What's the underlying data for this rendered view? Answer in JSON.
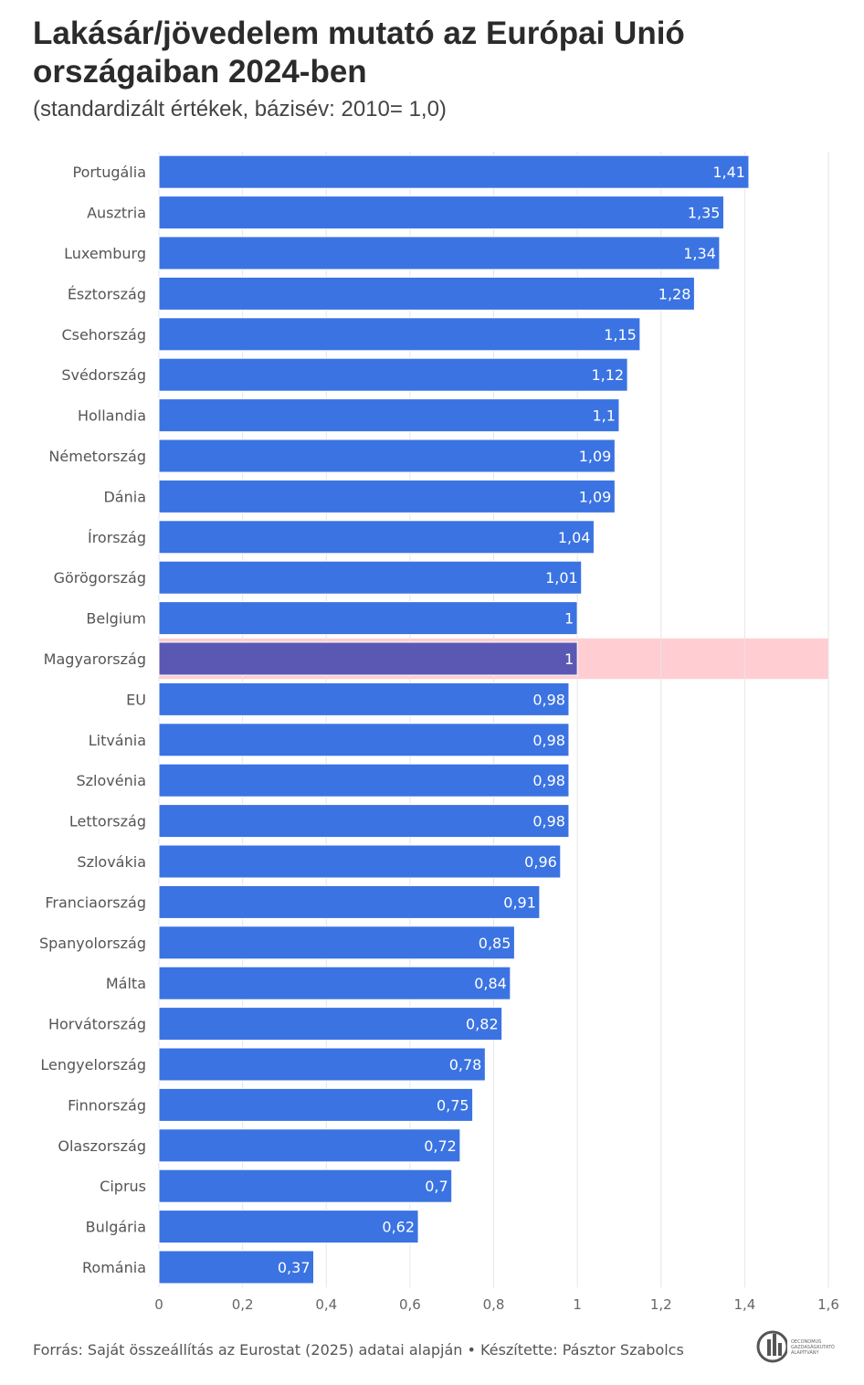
{
  "title": "Lakásár/jövedelem mutató az Európai Unió országaiban 2024-ben",
  "subtitle": "(standardizált értékek, bázisév: 2010= 1,0)",
  "footer": "Forrás: Saját összeállítás az Eurostat (2025) adatai alapján • Készítette: Pásztor Szabolcs",
  "logo_text": [
    "OECONOMUS",
    "GAZDASÁGKUTATÓ",
    "ALAPÍTVÁNY"
  ],
  "colors": {
    "bar": "#3b73e2",
    "highlight_bar": "#5b58b4",
    "highlight_band": "#ffcdd2",
    "grid": "#e6e6e6"
  },
  "chart_data": {
    "type": "bar",
    "orientation": "horizontal",
    "categories": [
      "Portugália",
      "Ausztria",
      "Luxemburg",
      "Észtország",
      "Csehország",
      "Svédország",
      "Hollandia",
      "Németország",
      "Dánia",
      "Írország",
      "Görögország",
      "Belgium",
      "Magyarország",
      "EU",
      "Litvánia",
      "Szlovénia",
      "Lettország",
      "Szlovákia",
      "Franciaország",
      "Spanyolország",
      "Málta",
      "Horvátország",
      "Lengyelország",
      "Finnország",
      "Olaszország",
      "Ciprus",
      "Bulgária",
      "Románia"
    ],
    "values": [
      1.41,
      1.35,
      1.34,
      1.28,
      1.15,
      1.12,
      1.1,
      1.09,
      1.09,
      1.04,
      1.01,
      1,
      1,
      0.98,
      0.98,
      0.98,
      0.98,
      0.96,
      0.91,
      0.85,
      0.84,
      0.82,
      0.78,
      0.75,
      0.72,
      0.7,
      0.62,
      0.37
    ],
    "value_labels": [
      "1,41",
      "1,35",
      "1,34",
      "1,28",
      "1,15",
      "1,12",
      "1,1",
      "1,09",
      "1,09",
      "1,04",
      "1,01",
      "1",
      "1",
      "0,98",
      "0,98",
      "0,98",
      "0,98",
      "0,96",
      "0,91",
      "0,85",
      "0,84",
      "0,82",
      "0,78",
      "0,75",
      "0,72",
      "0,7",
      "0,62",
      "0,37"
    ],
    "highlight": "Magyarország",
    "xlim": [
      0,
      1.6
    ],
    "xticks": [
      0,
      0.2,
      0.4,
      0.6,
      0.8,
      1,
      1.2,
      1.4,
      1.6
    ],
    "xtick_labels": [
      "0",
      "0,2",
      "0,4",
      "0,6",
      "0,8",
      "1",
      "1,2",
      "1,4",
      "1,6"
    ],
    "grid": true
  }
}
